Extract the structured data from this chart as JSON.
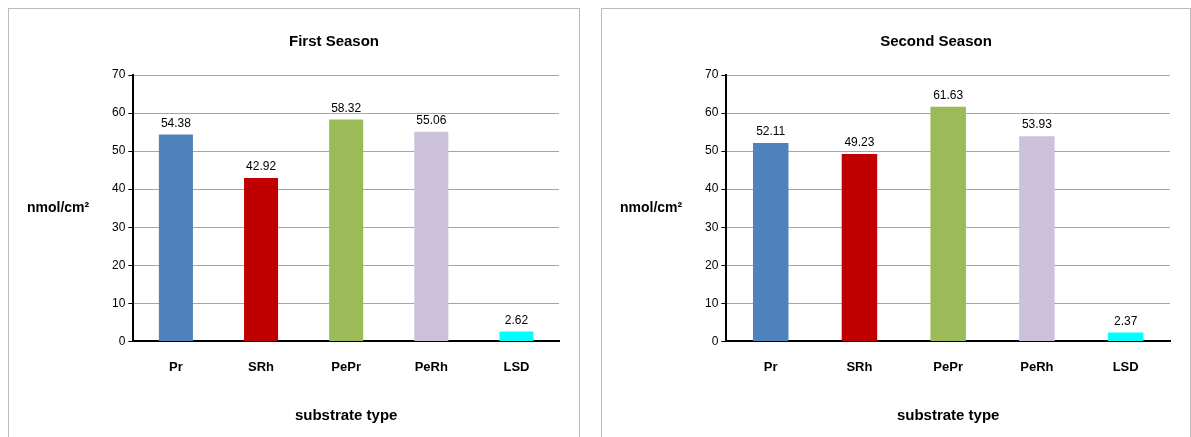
{
  "chart_data": [
    {
      "type": "bar",
      "title": "First Season",
      "xlabel": "substrate type",
      "ylabel": "nmol/cm²",
      "categories": [
        "Pr",
        "SRh",
        "PePr",
        "PeRh",
        "LSD"
      ],
      "values": [
        54.38,
        42.92,
        58.32,
        55.06,
        2.62
      ],
      "colors": [
        "#4f81bd",
        "#c00000",
        "#9bbb59",
        "#ccc1da",
        "#00ffff"
      ],
      "ylim": [
        0,
        70
      ],
      "yticks": [
        0,
        10,
        20,
        30,
        40,
        50,
        60,
        70
      ],
      "grid": "y",
      "data_labels": true
    },
    {
      "type": "bar",
      "title": "Second Season",
      "xlabel": "substrate type",
      "ylabel": "nmol/cm²",
      "categories": [
        "Pr",
        "SRh",
        "PePr",
        "PeRh",
        "LSD"
      ],
      "values": [
        52.11,
        49.23,
        61.63,
        53.93,
        2.37
      ],
      "colors": [
        "#4f81bd",
        "#c00000",
        "#9bbb59",
        "#ccc1da",
        "#00ffff"
      ],
      "ylim": [
        0,
        70
      ],
      "yticks": [
        0,
        10,
        20,
        30,
        40,
        50,
        60,
        70
      ],
      "grid": "y",
      "data_labels": true
    }
  ]
}
